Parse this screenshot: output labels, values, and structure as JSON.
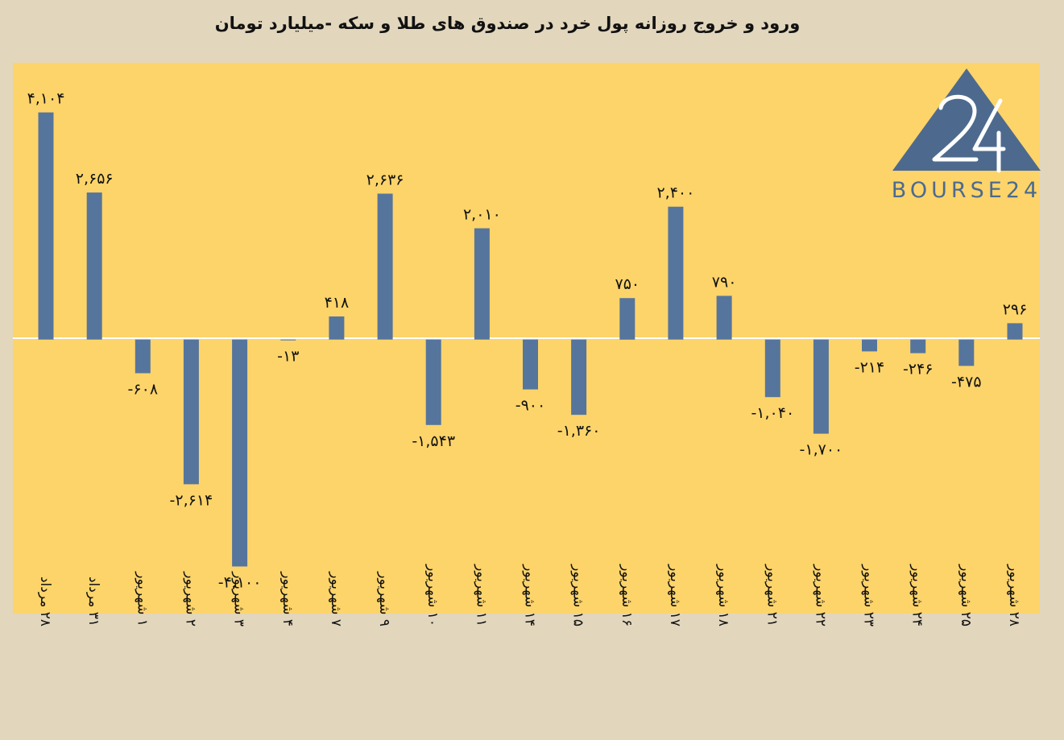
{
  "chart_data": {
    "type": "bar",
    "title": "ورود و خروج روزانه پول خرد در صندوق های طلا و سکه -میلیارد تومان",
    "xlabel": "",
    "ylabel": "",
    "categories": [
      "۲۸ مرداد",
      "۳۱ مرداد",
      "۱ شهریور",
      "۲ شهریور",
      "۳ شهریور",
      "۴ شهریور",
      "۷ شهریور",
      "۹ شهریور",
      "۱۰ شهریور",
      "۱۱ شهریور",
      "۱۴ شهریور",
      "۱۵ شهریور",
      "۱۶ شهریور",
      "۱۷ شهریور",
      "۱۸ شهریور",
      "۲۱ شهریور",
      "۲۲ شهریور",
      "۲۳ شهریور",
      "۲۴ شهریور",
      "۲۵ شهریور",
      "۲۸ شهریور"
    ],
    "values": [
      4104,
      2656,
      -608,
      -2614,
      -4100,
      -13,
      418,
      2636,
      -1543,
      2010,
      -900,
      -1360,
      750,
      2400,
      790,
      -1040,
      -1700,
      -214,
      -246,
      -475,
      296
    ],
    "value_labels": [
      "۴,۱۰۴",
      "۲,۶۵۶",
      "-۶۰۸",
      "-۲,۶۱۴",
      "-۴,۱۰۰",
      "-۱۳",
      "۴۱۸",
      "۲,۶۳۶",
      "-۱,۵۴۳",
      "۲,۰۱۰",
      "-۹۰۰",
      "-۱,۳۶۰",
      "۷۵۰",
      "۲,۴۰۰",
      "۷۹۰",
      "-۱,۰۴۰",
      "-۱,۷۰۰",
      "-۲۱۴",
      "-۲۴۶",
      "-۴۷۵",
      "۲۹۶"
    ],
    "ylim": [
      -4950,
      5000
    ],
    "grid": false,
    "legend": "none",
    "colors": {
      "bar": "#56759c",
      "plot_background": "#fdd46a",
      "page_background": "#e2d6bd",
      "zero_line": "#ffffff"
    }
  },
  "logo": {
    "text": "BOURSE24",
    "mark": "24",
    "color": "#4d6a8e"
  }
}
